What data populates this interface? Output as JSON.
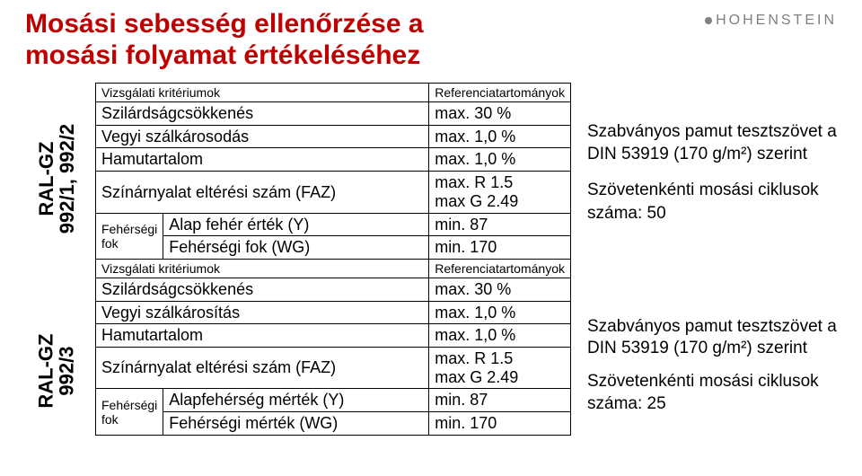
{
  "title_line1": "Mosási sebesség ellenőrzése a",
  "title_line2": "mosási folyamat értékeléséhez",
  "brand": "HOHENSTEIN",
  "section1": {
    "vlabel_a": "RAL-GZ",
    "vlabel_b": "992/1, 992/2",
    "rows": {
      "head_l": "Vizsgálati kritériumok",
      "head_r": "Referenciatartományok",
      "r1l": "Szilárdságcsökkenés",
      "r1r": "max. 30 %",
      "r2l": "Vegyi szálkárosodás",
      "r2r": "max. 1,0 %",
      "r3l": "Hamutartalom",
      "r3r": "max. 1,0 %",
      "r4l": "Színárnyalat eltérési szám (FAZ)",
      "r4r": "max. R 1.5\nmax G 2.49",
      "sub_label": "Fehérségi fok",
      "r5l": "Alap fehér érték (Y)",
      "r5r": "min. 87",
      "r6l": "Fehérségi fok (WG)",
      "r6r": "min. 170"
    },
    "info1": "Szabványos pamut tesztszövet a DIN 53919  (170 g/m²) szerint",
    "info2": "Szövetenkénti mosási ciklusok száma: 50"
  },
  "section2": {
    "vlabel_a": "RAL-GZ",
    "vlabel_b": "992/3",
    "rows": {
      "head_l": "Vizsgálati kritériumok",
      "head_r": "Referenciatartományok",
      "r1l": "Szilárdságcsökkenés",
      "r1r": "max. 30 %",
      "r2l": "Vegyi szálkárosítás",
      "r2r": "max. 1,0 %",
      "r3l": "Hamutartalom",
      "r3r": "max. 1,0 %",
      "r4l": "Színárnyalat eltérési szám (FAZ)",
      "r4r": "max. R 1.5\nmax G 2.49",
      "sub_label": "Fehérségi fok",
      "r5l": "Alapfehérség mérték (Y)",
      "r5r": "min. 87",
      "r6l": "Fehérségi mérték (WG)",
      "r6r": "min. 170"
    },
    "info1": "Szabványos pamut tesztszövet a DIN 53919 (170 g/m²) szerint",
    "info2": "Szövetenkénti mosási ciklusok száma: 25"
  },
  "colors": {
    "title": "#bf0000",
    "brand": "#808080",
    "border": "#000000",
    "text": "#000000",
    "bg": "#ffffff"
  },
  "typography": {
    "title_size": 30,
    "body_size": 18,
    "small_size": 14
  }
}
